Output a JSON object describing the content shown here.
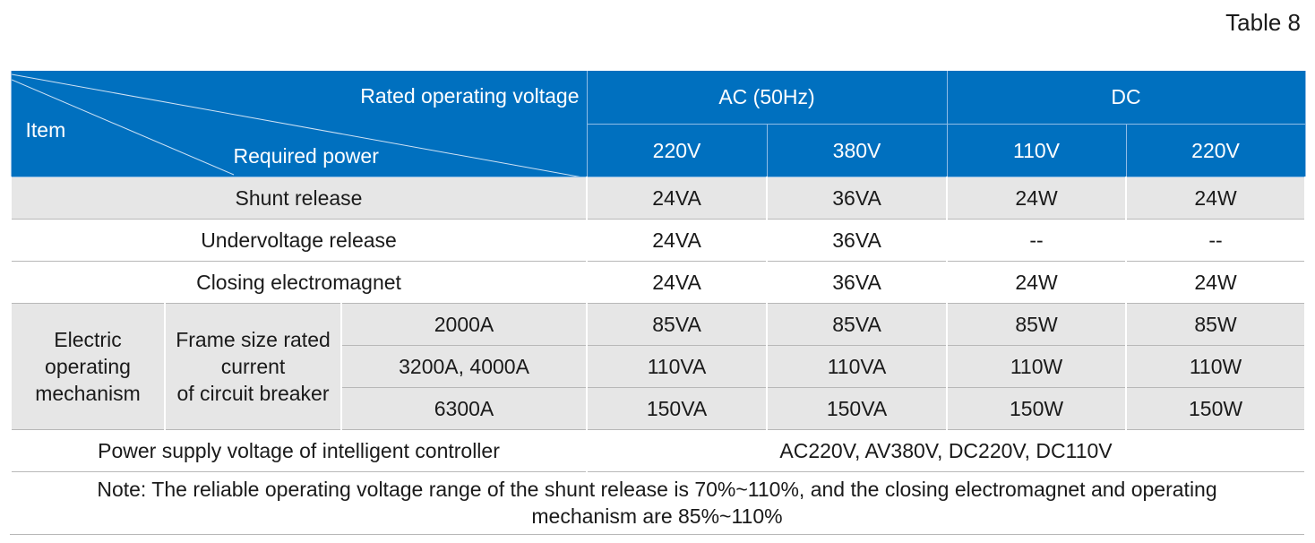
{
  "table_label": "Table 8",
  "header": {
    "item": "Item",
    "rated_operating_voltage": "Rated operating voltage",
    "required_power": "Required power",
    "ac_group": "AC (50Hz)",
    "dc_group": "DC",
    "columns": [
      "220V",
      "380V",
      "110V",
      "220V"
    ]
  },
  "rows": [
    {
      "label": "Shunt release",
      "values": [
        "24VA",
        "36VA",
        "24W",
        "24W"
      ]
    },
    {
      "label": "Undervoltage release",
      "values": [
        "24VA",
        "36VA",
        "--",
        "--"
      ]
    },
    {
      "label": "Closing electromagnet",
      "values": [
        "24VA",
        "36VA",
        "24W",
        "24W"
      ]
    }
  ],
  "mechanism": {
    "label": "Electric operating mechanism",
    "label_lines": [
      "Electric",
      "operating",
      "mechanism"
    ],
    "frame_lines": [
      "Frame size rated",
      "current",
      "of circuit breaker"
    ],
    "rows": [
      {
        "size": "2000A",
        "values": [
          "85VA",
          "85VA",
          "85W",
          "85W"
        ]
      },
      {
        "size": "3200A, 4000A",
        "values": [
          "110VA",
          "110VA",
          "110W",
          "110W"
        ]
      },
      {
        "size": "6300A",
        "values": [
          "150VA",
          "150VA",
          "150W",
          "150W"
        ]
      }
    ]
  },
  "controller": {
    "label": "Power supply voltage of intelligent controller",
    "value": "AC220V, AV380V, DC220V, DC110V"
  },
  "note_lines": [
    "Note: The reliable operating voltage range of the shunt release is 70%~110%, and the closing electromagnet and operating",
    "mechanism are 85%~110%"
  ],
  "colors": {
    "header_blue": "#0070bf",
    "row_gray": "#e6e6e6"
  }
}
